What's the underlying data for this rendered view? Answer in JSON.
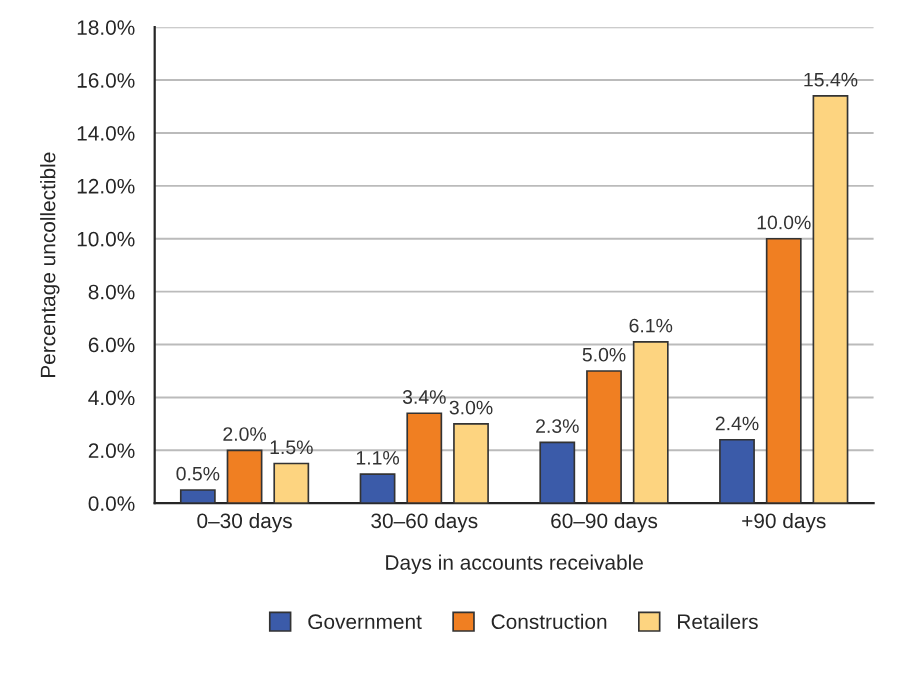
{
  "chart_data": {
    "type": "bar",
    "xlabel": "Days in accounts receivable",
    "ylabel": "Percentage uncollectible",
    "categories": [
      "0–30 days",
      "30–60 days",
      "60–90 days",
      "+90 days"
    ],
    "series": [
      {
        "name": "Government",
        "color": "#3b5ba9",
        "values": [
          0.5,
          1.1,
          2.3,
          2.4
        ],
        "value_labels": [
          "0.5%",
          "1.1%",
          "2.3%",
          "2.4%"
        ]
      },
      {
        "name": "Construction",
        "color": "#f07f22",
        "values": [
          2.0,
          3.4,
          5.0,
          10.0
        ],
        "value_labels": [
          "2.0%",
          "3.4%",
          "5.0%",
          "10.0%"
        ]
      },
      {
        "name": "Retailers",
        "color": "#fdd480",
        "values": [
          1.5,
          3.0,
          6.1,
          15.4
        ],
        "value_labels": [
          "1.5%",
          "3.0%",
          "6.1%",
          "15.4%"
        ]
      }
    ],
    "ylim": [
      0,
      18
    ],
    "yticks": [
      {
        "value": 0,
        "label": "0.0%"
      },
      {
        "value": 2,
        "label": "2.0%"
      },
      {
        "value": 4,
        "label": "4.0%"
      },
      {
        "value": 6,
        "label": "6.0%"
      },
      {
        "value": 8,
        "label": "8.0%"
      },
      {
        "value": 10,
        "label": "10.0%"
      },
      {
        "value": 12,
        "label": "12.0%"
      },
      {
        "value": 14,
        "label": "14.0%"
      },
      {
        "value": 16,
        "label": "16.0%"
      },
      {
        "value": 18,
        "label": "18.0%"
      }
    ],
    "grid": "y",
    "legend": "bottom"
  }
}
